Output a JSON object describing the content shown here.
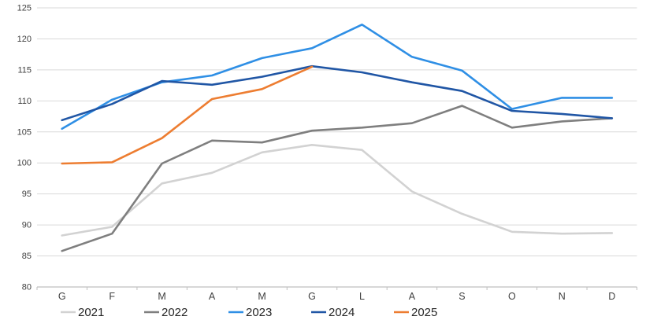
{
  "chart_data": {
    "type": "line",
    "title": "",
    "xlabel": "",
    "ylabel": "",
    "categories": [
      "G",
      "F",
      "M",
      "A",
      "M",
      "G",
      "L",
      "A",
      "S",
      "O",
      "N",
      "D"
    ],
    "y_ticks": [
      "80",
      "85",
      "90",
      "95",
      "100",
      "105",
      "110",
      "115",
      "120",
      "125"
    ],
    "ylim": [
      80,
      125
    ],
    "grid": true,
    "legend_position": "bottom",
    "series": [
      {
        "name": "2021",
        "color": "#d2d2d2",
        "values": [
          88.3,
          89.7,
          96.7,
          98.4,
          101.7,
          102.9,
          102.1,
          95.4,
          91.8,
          88.9,
          88.6,
          88.7
        ]
      },
      {
        "name": "2022",
        "color": "#7f7f7f",
        "values": [
          85.8,
          88.6,
          99.9,
          103.6,
          103.3,
          105.2,
          105.7,
          106.4,
          109.2,
          105.7,
          106.7,
          107.2
        ]
      },
      {
        "name": "2023",
        "color": "#2f8fe5",
        "values": [
          105.5,
          110.2,
          113.0,
          114.1,
          116.9,
          118.5,
          122.3,
          117.1,
          114.9,
          108.7,
          110.5,
          110.5
        ]
      },
      {
        "name": "2024",
        "color": "#2056a5",
        "values": [
          106.9,
          109.5,
          113.2,
          112.6,
          113.9,
          115.6,
          114.6,
          113.0,
          111.6,
          108.4,
          107.9,
          107.2
        ]
      },
      {
        "name": "2025",
        "color": "#ed7d31",
        "values": [
          99.9,
          100.1,
          104.0,
          110.3,
          111.9,
          115.5,
          null,
          null,
          null,
          null,
          null,
          null
        ]
      }
    ],
    "legend": [
      {
        "label": "2021",
        "color": "#d2d2d2"
      },
      {
        "label": "2022",
        "color": "#7f7f7f"
      },
      {
        "label": "2023",
        "color": "#2f8fe5"
      },
      {
        "label": "2024",
        "color": "#2056a5"
      },
      {
        "label": "2025",
        "color": "#ed7d31"
      }
    ],
    "colors": {
      "gridline": "#d9d9d9",
      "axis_line": "#bfbfbf",
      "tick": "#bfbfbf",
      "axis_text": "#404040",
      "legend_text": "#262626",
      "background": "#ffffff"
    }
  }
}
